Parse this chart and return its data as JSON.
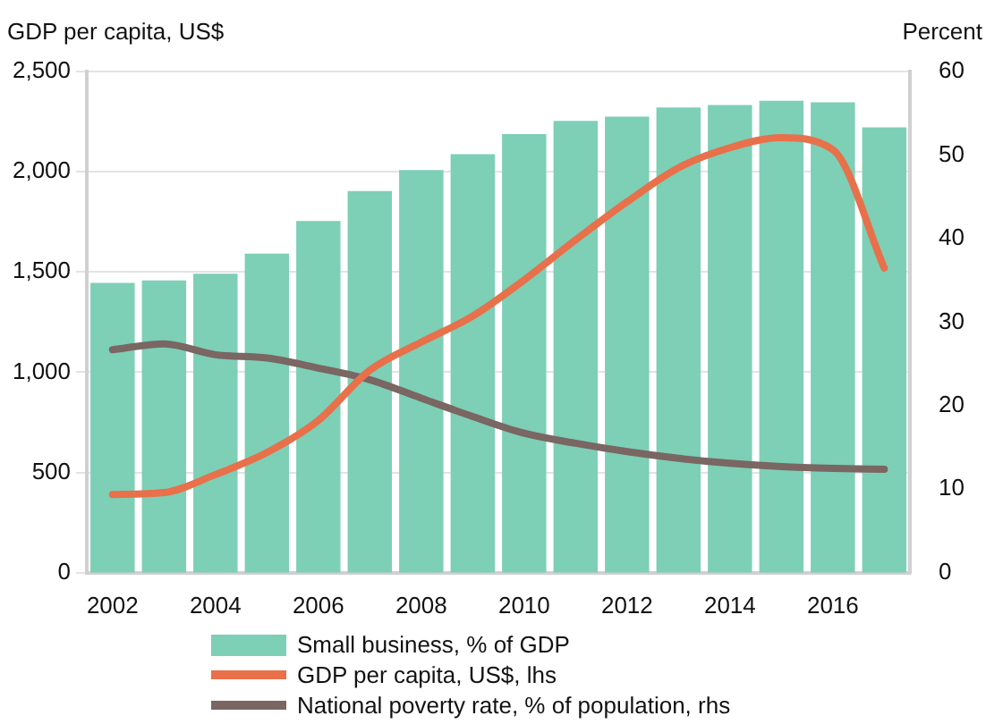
{
  "chart_data": {
    "type": "bar",
    "ylabel": "GDP per capita, US$",
    "y2label": "Percent",
    "categories": [
      "2002",
      null,
      "2004",
      null,
      "2006",
      null,
      "2008",
      null,
      "2010",
      null,
      "2012",
      null,
      "2014",
      null,
      "2016",
      null
    ],
    "series": [
      {
        "name": "Small business, % of GDP",
        "axis": "y2",
        "color": "#7dcfb6",
        "values": [
          34.7,
          35.0,
          35.8,
          38.2,
          42.1,
          45.7,
          48.2,
          50.1,
          52.5,
          54.1,
          54.6,
          55.7,
          56.0,
          56.5,
          56.3,
          53.3
        ]
      },
      {
        "name": "GDP per capita, US$, lhs",
        "type": "line",
        "axis": "y",
        "color": "#e8704a",
        "values": [
          390,
          400,
          490,
          600,
          760,
          1010,
          1150,
          1280,
          1460,
          1660,
          1850,
          2020,
          2120,
          2170,
          2110,
          1520
        ]
      },
      {
        "name": "National poverty rate, % of population, rhs",
        "type": "line",
        "axis": "y2",
        "color": "#7a6662",
        "values": [
          26.7,
          27.4,
          26.1,
          25.7,
          24.5,
          23.1,
          20.9,
          18.7,
          16.7,
          15.5,
          14.5,
          13.7,
          13.1,
          12.7,
          12.5,
          12.4
        ]
      }
    ],
    "ylim": [
      0,
      2500
    ],
    "yticks": [
      {
        "value": 0,
        "label": "0"
      },
      {
        "value": 500,
        "label": "500"
      },
      {
        "value": 1000,
        "label": "1,000"
      },
      {
        "value": 1500,
        "label": "1,500"
      },
      {
        "value": 2000,
        "label": "2,000"
      },
      {
        "value": 2500,
        "label": "2,500"
      }
    ],
    "y2lim": [
      0,
      60
    ],
    "y2ticks": [
      0,
      10,
      20,
      30,
      40,
      50,
      60
    ],
    "grid": "y",
    "legend": "bottom",
    "marker": "none",
    "line_style": "solid"
  }
}
